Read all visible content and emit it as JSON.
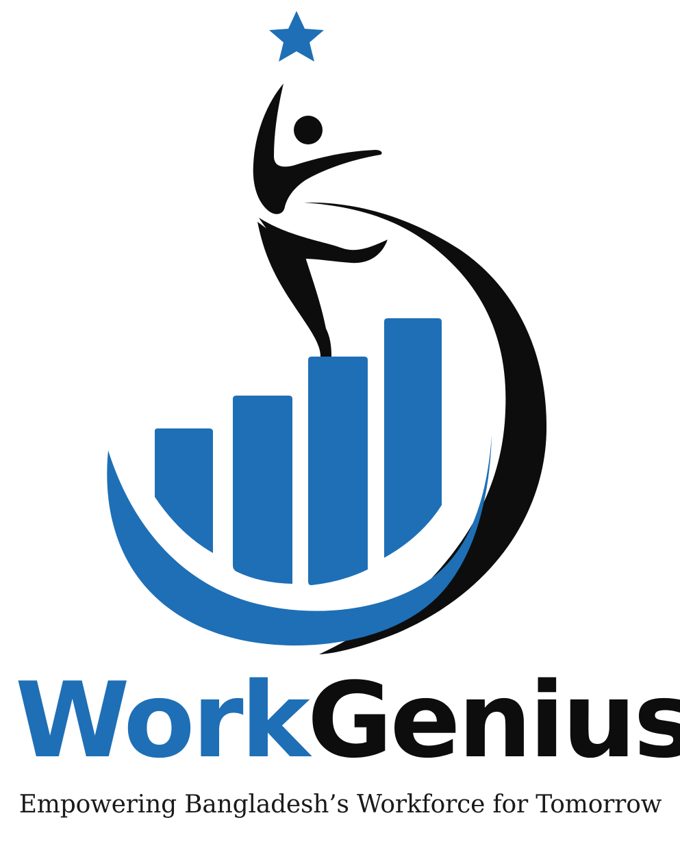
{
  "brand": {
    "name_part_1": "Work",
    "name_part_2": "Genius",
    "tagline": "Empowering Bangladesh’s Workforce for Tomorrow"
  },
  "colors": {
    "brand_blue": "#1e6fb6",
    "brand_black": "#0d0d0e",
    "background": "#ffffff"
  },
  "icons": {
    "star": "star-icon",
    "figure": "leaping-person-icon",
    "bars": "growth-bars-icon",
    "swoosh_blue": "blue-swoosh-icon",
    "swoosh_black": "black-crescent-icon"
  },
  "growth_bars": {
    "count": 4,
    "relative_heights": [
      0.45,
      0.72,
      0.92,
      1.0
    ]
  }
}
